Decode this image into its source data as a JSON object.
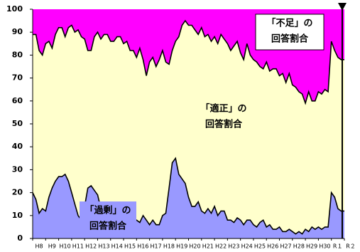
{
  "chart_data": {
    "type": "area",
    "categories": [
      "H8",
      null,
      null,
      null,
      "H9",
      null,
      null,
      null,
      "H10",
      null,
      null,
      null,
      "H11",
      null,
      null,
      null,
      "H12",
      null,
      null,
      null,
      "H13",
      null,
      null,
      null,
      "H14",
      null,
      null,
      null,
      "H15",
      null,
      null,
      null,
      "H16",
      null,
      null,
      null,
      "H17",
      null,
      null,
      null,
      "H18",
      null,
      null,
      null,
      "H19",
      null,
      null,
      null,
      "H20",
      null,
      null,
      null,
      "H21",
      null,
      null,
      null,
      "H22",
      null,
      null,
      null,
      "H23",
      null,
      null,
      null,
      "H24",
      null,
      null,
      null,
      "H25",
      null,
      null,
      null,
      "H26",
      null,
      null,
      null,
      "H27",
      null,
      null,
      null,
      "H28",
      null,
      null,
      null,
      "H29",
      null,
      null,
      null,
      "H30",
      null,
      null,
      null,
      "R１",
      null,
      null,
      null,
      "R２"
    ],
    "series": [
      {
        "color": "#9999ff",
        "values": [
          20,
          17,
          11,
          13,
          12,
          18,
          22,
          25,
          27,
          27,
          28,
          25,
          20,
          15,
          10,
          8,
          14,
          22,
          23,
          21,
          19,
          13,
          10,
          9,
          8,
          10,
          7,
          8,
          10,
          9,
          6,
          8,
          8,
          7,
          10,
          8,
          6,
          8,
          6,
          6,
          10,
          11,
          22,
          33,
          35,
          28,
          26,
          24,
          18,
          14,
          14,
          16,
          12,
          11,
          13,
          11,
          14,
          10,
          12,
          12,
          8,
          8,
          7,
          9,
          8,
          6,
          8,
          8,
          6,
          5,
          7,
          8,
          5,
          6,
          4,
          4,
          5,
          3,
          3,
          4,
          3,
          2,
          3,
          2,
          4,
          3,
          5,
          4,
          5,
          4,
          5,
          5,
          20,
          18,
          13,
          12,
          12
        ]
      },
      {
        "color": "#ff00ff",
        "values": [
          89,
          89,
          82,
          80,
          85,
          86,
          83,
          89,
          92,
          92,
          88,
          92,
          93,
          90,
          91,
          88,
          87,
          82,
          82,
          88,
          90,
          87,
          89,
          89,
          86,
          86,
          88,
          88,
          85,
          86,
          82,
          82,
          79,
          83,
          78,
          71,
          77,
          79,
          75,
          78,
          82,
          77,
          76,
          82,
          86,
          88,
          93,
          95,
          93,
          93,
          91,
          89,
          92,
          88,
          89,
          86,
          88,
          85,
          89,
          87,
          85,
          82,
          84,
          86,
          81,
          78,
          85,
          80,
          78,
          77,
          75,
          74,
          77,
          73,
          74,
          74,
          71,
          72,
          68,
          72,
          67,
          66,
          64,
          63,
          59,
          64,
          60,
          60,
          64,
          63,
          65,
          64,
          86,
          82,
          79,
          78,
          78
        ]
      }
    ],
    "middle_color": "#ffffcc",
    "ylim": [
      0,
      100
    ],
    "yticks": [
      0,
      10,
      20,
      30,
      40,
      50,
      60,
      70,
      80,
      90,
      100
    ],
    "annotations": [
      {
        "lines": [
          "「不足」の",
          "回答割合"
        ]
      },
      {
        "lines": [
          "「適正」の",
          "回答割合"
        ]
      },
      {
        "lines": [
          "「過剰」の",
          "回答割合"
        ]
      }
    ]
  }
}
